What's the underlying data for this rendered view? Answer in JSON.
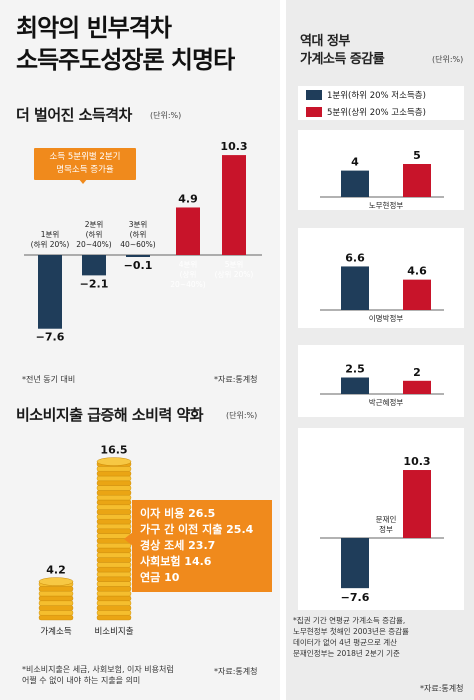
{
  "headline": {
    "line1": "최악의 빈부격차",
    "line2": "소득주도성장론 치명타"
  },
  "colors": {
    "blue": "#1f3d5a",
    "red": "#c8142a",
    "orange": "#f08a1c",
    "gold": "#f2b21b"
  },
  "chart_data": [
    {
      "type": "bar",
      "title": "더 벌어진 소득격차",
      "unit": "(단위:%)",
      "callout": [
        "소득 5분위별 2분기",
        "명목소득 증가율"
      ],
      "categories": [
        {
          "label": [
            "1분위",
            "(하위 20%)"
          ]
        },
        {
          "label": [
            "2분위",
            "(하위",
            "20~40%)"
          ]
        },
        {
          "label": [
            "3분위",
            "(하위",
            "40~60%)"
          ]
        },
        {
          "label": [
            "4분위",
            "(상위",
            "20~40%)"
          ]
        },
        {
          "label": [
            "5분위",
            "(상위 20%)"
          ]
        }
      ],
      "values": [
        -7.6,
        -2.1,
        -0.1,
        4.9,
        10.3
      ],
      "value_labels": [
        "−7.6",
        "−2.1",
        "−0.1",
        "4.9",
        "10.3"
      ],
      "note": "*전년 동기 대비",
      "source": "*자료:통계청"
    },
    {
      "type": "bar",
      "title": "비소비지출 급증해 소비력 약화",
      "unit": "(단위:%)",
      "categories": [
        "가계소득",
        "비소비지출"
      ],
      "values": [
        4.2,
        16.5
      ],
      "value_labels": [
        "4.2",
        "16.5"
      ],
      "breakdown": [
        {
          "label": "이자 비용",
          "value": "26.5"
        },
        {
          "label": "가구 간 이전 지출",
          "value": "25.4"
        },
        {
          "label": "경상 조세",
          "value": "23.7"
        },
        {
          "label": "사회보험",
          "value": "14.6"
        },
        {
          "label": "연금",
          "value": "10"
        }
      ],
      "note": [
        "*비소비지출은 세금, 사회보험, 이자 비용처럼",
        "어쩔 수 없이 내야 하는 지출을 의미"
      ],
      "source": "*자료:통계청"
    },
    {
      "type": "bar",
      "title": [
        "역대 정부",
        "가계소득 증감률"
      ],
      "unit": "(단위:%)",
      "legend": [
        "1분위(하위 20% 저소득층)",
        "5분위(상위 20% 고소득층)"
      ],
      "series": [
        {
          "name": "1분위(하위 20% 저소득층)",
          "values": [
            4,
            6.6,
            2.5,
            -7.6
          ]
        },
        {
          "name": "5분위(상위 20% 고소득층)",
          "values": [
            5,
            4.6,
            2,
            10.3
          ]
        }
      ],
      "categories": [
        [
          "노무현정부"
        ],
        [
          "이명박정부"
        ],
        [
          "박근혜정부"
        ],
        [
          "문재인",
          "정부"
        ]
      ],
      "value_labels": [
        [
          "4",
          "5"
        ],
        [
          "6.6",
          "4.6"
        ],
        [
          "2.5",
          "2"
        ],
        [
          "−7.6",
          "10.3"
        ]
      ],
      "note": [
        "*집권 기간 연평균 가계소득 증감률,",
        "노무현정부 첫해인 2003년은 증감률",
        "데이터가 없어 4년 평균으로 계산",
        "문재인정부는 2018년 2분기 기준"
      ],
      "source": "*자료:통계청"
    }
  ]
}
